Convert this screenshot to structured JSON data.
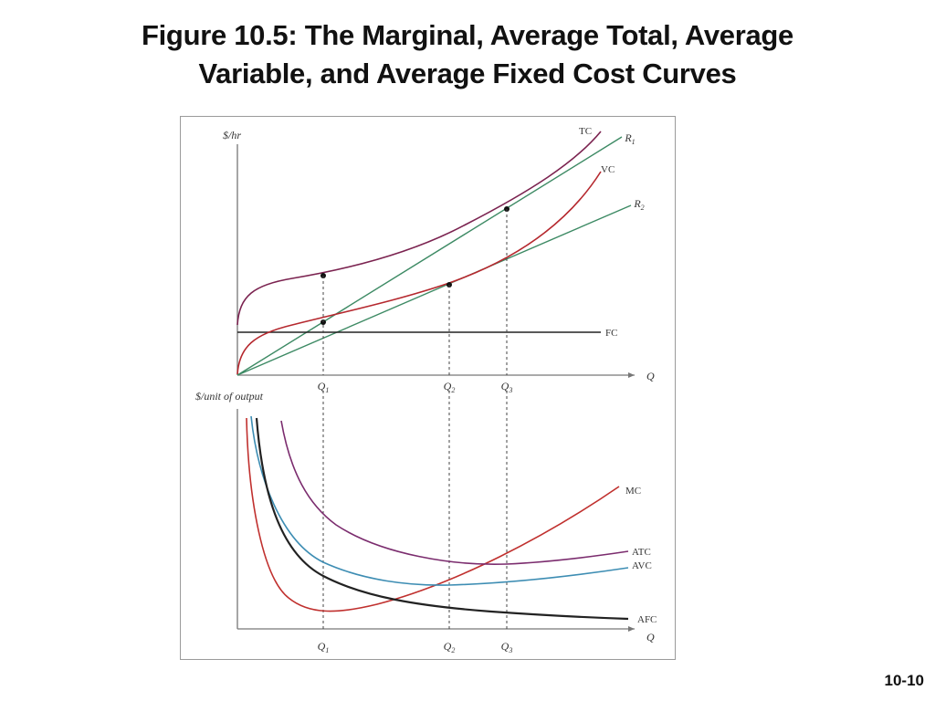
{
  "slide": {
    "title_line1": "Figure 10.5: The Marginal, Average Total, Average",
    "title_line2": "Variable, and Average Fixed Cost Curves",
    "number": "10-10"
  },
  "colors": {
    "tc": "#7b2350",
    "vc": "#b5282e",
    "fc": "#222222",
    "rays": "#3d8a64",
    "mc": "#c0302e",
    "atc": "#7b2c6e",
    "avc": "#3d8db3",
    "afc": "#222222",
    "axis": "#777777",
    "dash": "#444444"
  },
  "chart_data": [
    {
      "type": "line",
      "ylabel": "$/hr",
      "xlabel": "Q",
      "q_markers": [
        "Q1",
        "Q2",
        "Q3"
      ],
      "series": [
        {
          "name": "TC"
        },
        {
          "name": "VC"
        },
        {
          "name": "FC"
        },
        {
          "name": "R1"
        },
        {
          "name": "R2"
        }
      ],
      "annotations": [
        {
          "text": "Q1",
          "on": [
            "R1",
            "TC",
            "VC"
          ]
        },
        {
          "text": "Q2",
          "on": [
            "R2",
            "VC"
          ]
        },
        {
          "text": "Q3",
          "on": [
            "R1",
            "TC"
          ]
        }
      ]
    },
    {
      "type": "line",
      "ylabel": "$/unit of output",
      "xlabel": "Q",
      "q_markers": [
        "Q1",
        "Q2",
        "Q3"
      ],
      "series": [
        {
          "name": "MC"
        },
        {
          "name": "ATC"
        },
        {
          "name": "AVC"
        },
        {
          "name": "AFC"
        }
      ]
    }
  ]
}
